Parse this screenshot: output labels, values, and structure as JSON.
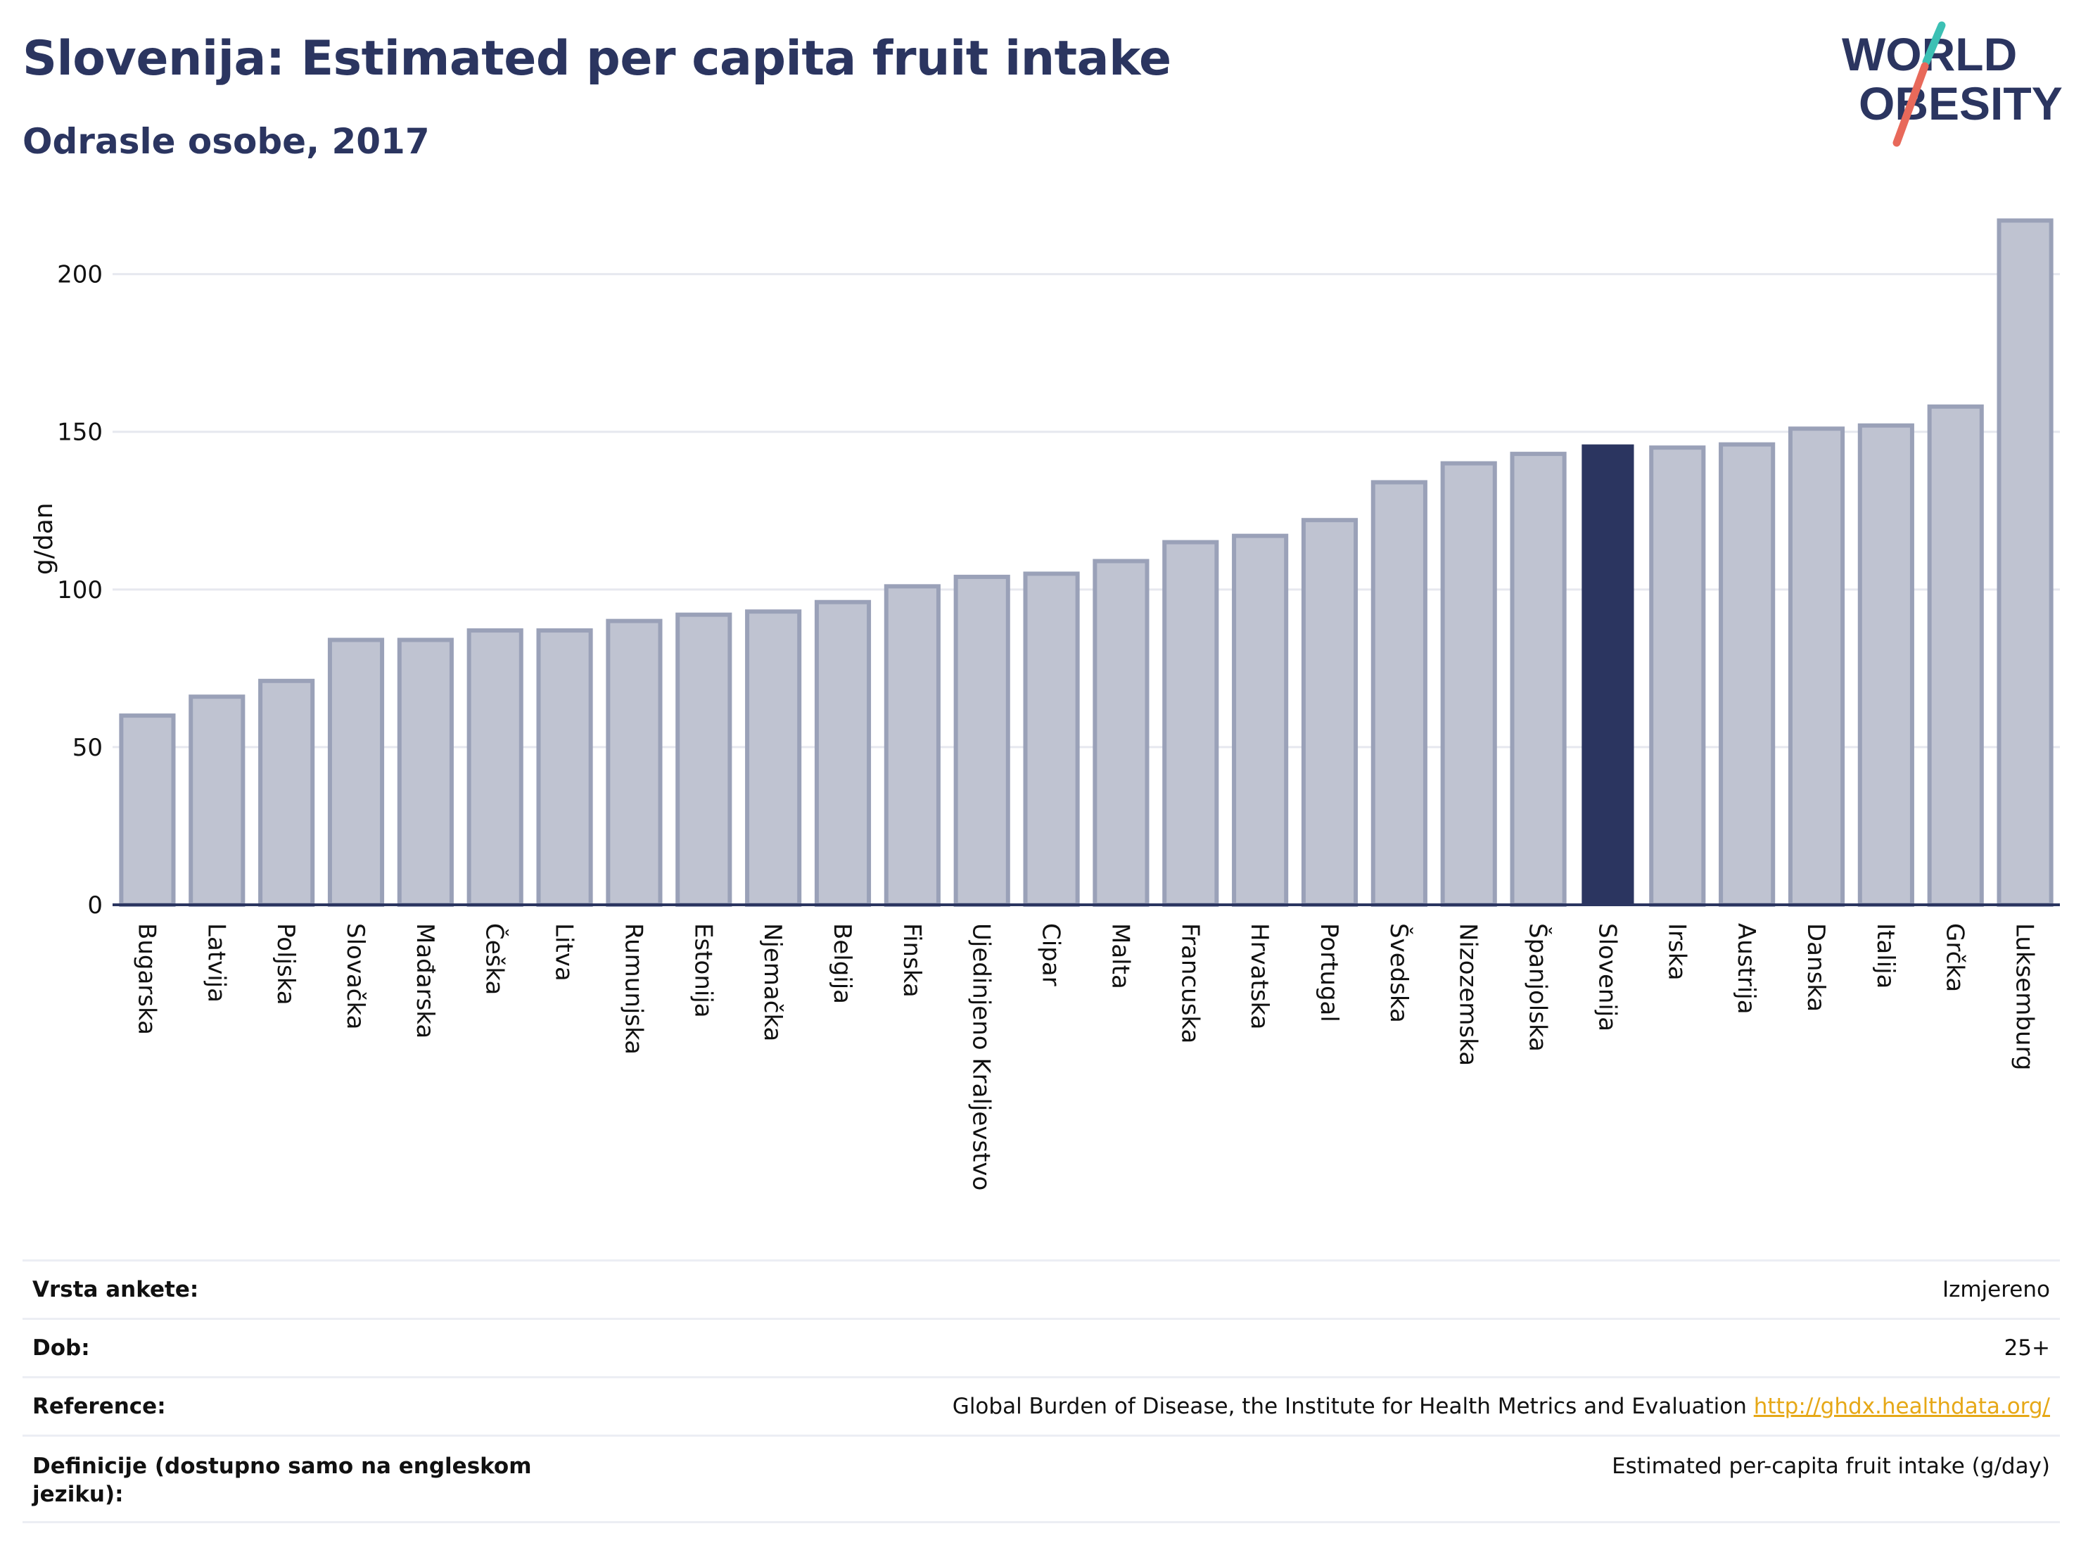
{
  "header": {
    "title": "Slovenija: Estimated per capita fruit intake",
    "subtitle": "Odrasle osobe, 2017"
  },
  "logo": {
    "line1": "WORLD",
    "line2": "OBESITY",
    "accent_colors": [
      "#3cc0b4",
      "#e8695a"
    ]
  },
  "colors": {
    "bar": "#bfc3d1",
    "bar_stroke": "#9aa1b8",
    "highlight": "#2b3560",
    "grid": "#e6e8ef",
    "axis": "#2b3560",
    "text": "#111111"
  },
  "chart_data": {
    "type": "bar",
    "ylabel": "g/dan",
    "ylim": [
      0,
      220
    ],
    "yticks": [
      0,
      50,
      100,
      150,
      200
    ],
    "grid": true,
    "highlight": "Slovenija",
    "categories": [
      "Bugarska",
      "Latvija",
      "Poljska",
      "Slovačka",
      "Mađarska",
      "Češka",
      "Litva",
      "Rumunjska",
      "Estonija",
      "Njemačka",
      "Belgija",
      "Finska",
      "Ujedinjeno Kraljevstvo",
      "Cipar",
      "Malta",
      "Francuska",
      "Hrvatska",
      "Portugal",
      "Švedska",
      "Nizozemska",
      "Španjolska",
      "Slovenija",
      "Irska",
      "Austrija",
      "Danska",
      "Italija",
      "Grčka",
      "Luksemburg"
    ],
    "values": [
      60,
      66,
      71,
      84,
      84,
      87,
      87,
      90,
      92,
      93,
      96,
      101,
      104,
      105,
      109,
      115,
      117,
      122,
      134,
      140,
      143,
      146,
      145,
      146,
      151,
      152,
      158,
      217
    ]
  },
  "info": [
    {
      "label": "Vrsta ankete:",
      "value": "Izmjereno"
    },
    {
      "label": "Dob:",
      "value": "25+"
    },
    {
      "label": "Reference:",
      "value": "Global Burden of Disease, the Institute for Health Metrics and Evaluation",
      "link": "http://ghdx.healthdata.org/"
    },
    {
      "label": "Definicije (dostupno samo na engleskom jeziku):",
      "value": "Estimated per-capita fruit intake (g/day)"
    }
  ]
}
